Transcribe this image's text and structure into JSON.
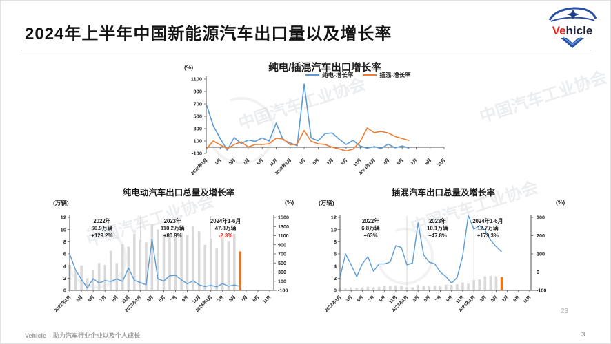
{
  "page": {
    "title": "2024年上半年中国新能源汽车出口量以及增长率",
    "footer_left": "Vehicle – 助力汽车行业企业以及个人成长",
    "page_number": "3",
    "inner_page_number": "23",
    "watermark": "中国汽车工业协会"
  },
  "logo": {
    "text_red": "Ve",
    "text_dark": "hicle"
  },
  "chart_data": [
    {
      "id": "growth",
      "type": "line",
      "title": "纯电/插混汽车出口增长率",
      "unit_left": "(%)",
      "ylim": [
        -100,
        1100
      ],
      "yticks": [
        1100,
        900,
        700,
        500,
        300,
        100,
        -100
      ],
      "x_tick_labels": [
        "2022年1月",
        "3月",
        "5月",
        "7月",
        "9月",
        "11月",
        "2023年1月",
        "3月",
        "5月",
        "7月",
        "9月",
        "11月",
        "2024年1月",
        "3月",
        "5月",
        "7月",
        "9月",
        "11月"
      ],
      "x_range_months": [
        "2022-01",
        "2024-11"
      ],
      "series": [
        {
          "name": "纯电-增长率",
          "color": "#5b9bd5",
          "values": [
            700,
            350,
            140,
            -45,
            155,
            60,
            115,
            95,
            150,
            100,
            390,
            120,
            70,
            25,
            1020,
            150,
            105,
            220,
            230,
            130,
            45,
            110,
            20,
            -15,
            10,
            -20,
            50,
            -10,
            20,
            -15
          ]
        },
        {
          "name": "插混-增长率",
          "color": "#ed7d31",
          "values": [
            -30,
            100,
            40,
            -25,
            45,
            85,
            5,
            45,
            45,
            55,
            145,
            135,
            40,
            50,
            270,
            95,
            55,
            45,
            0,
            -25,
            -60,
            -30,
            90,
            310,
            235,
            255,
            230,
            175,
            140,
            110
          ]
        }
      ]
    },
    {
      "id": "bev",
      "type": "bar+line",
      "title": "纯电动汽车出口总量及增长率",
      "unit_left": "(万辆)",
      "unit_right": "(%)",
      "ylim_left": [
        0,
        12
      ],
      "yticks_left": [
        12,
        10,
        8,
        6,
        4,
        2,
        0
      ],
      "ylim_right": [
        -100,
        1500
      ],
      "yticks_right": [
        1500,
        1300,
        1100,
        900,
        700,
        500,
        300,
        100,
        -100
      ],
      "x_tick_labels": [
        "2022年1月",
        "3月",
        "5月",
        "7月",
        "9月",
        "11月",
        "2023年1月",
        "3月",
        "5月",
        "7月",
        "9月",
        "11月",
        "2024年1月",
        "3月",
        "5月",
        "7月",
        "9月",
        "11月"
      ],
      "bars": {
        "name": "出口量(万辆)",
        "color": "#d9d9d9",
        "highlight_color": "#e8761c",
        "values": [
          4.2,
          3.2,
          4.1,
          2.0,
          3.4,
          4.5,
          4.2,
          6.5,
          4.5,
          7.6,
          7.2,
          9.3,
          8.3,
          7.9,
          10.9,
          10.0,
          9.2,
          8.7,
          8.8,
          9.5,
          9.1,
          10.6,
          9.7,
          7.5,
          8.5,
          7.0,
          8.6,
          8.0,
          9.3,
          6.4
        ]
      },
      "line": {
        "name": "增长率(%)",
        "color": "#5b9bd5",
        "values": [
          700,
          350,
          140,
          -45,
          155,
          60,
          115,
          95,
          150,
          100,
          390,
          120,
          70,
          25,
          1020,
          150,
          105,
          220,
          230,
          130,
          45,
          110,
          20,
          -15,
          10,
          -20,
          50,
          -10,
          20,
          -15
        ]
      },
      "dividers": [
        12,
        24
      ],
      "annotations": [
        {
          "year": "2022年",
          "volume": "60.9万辆",
          "growth": "+129.2%",
          "growth_color": "#222222",
          "month_center": 5.5
        },
        {
          "year": "2023年",
          "volume": "110.2万辆",
          "growth": "+80.9%",
          "growth_color": "#222222",
          "month_center": 17.5
        },
        {
          "year": "2024年1-6月",
          "volume": "47.8万辆",
          "growth": "-2.3%",
          "growth_color": "#e8261e",
          "month_center": 26.5
        }
      ]
    },
    {
      "id": "phev",
      "type": "bar+line",
      "title": "插混汽车出口总量及增长率",
      "unit_left": "(万辆)",
      "unit_right": "(%)",
      "ylim_left": [
        0,
        12
      ],
      "yticks_left": [
        12,
        10,
        8,
        6,
        4,
        2,
        0
      ],
      "ylim_right": [
        -100,
        300
      ],
      "yticks_right": [
        300,
        200,
        100,
        0,
        -100
      ],
      "x_tick_labels": [
        "2022年1月",
        "3月",
        "5月",
        "7月",
        "9月",
        "11月",
        "2023年1月",
        "3月",
        "5月",
        "7月",
        "9月",
        "11月",
        "2024年1月",
        "3月",
        "5月",
        "7月",
        "9月",
        "11月"
      ],
      "bars": {
        "name": "出口量(万辆)",
        "color": "#d9d9d9",
        "highlight_color": "#e8761c",
        "values": [
          0.4,
          0.3,
          0.5,
          0.4,
          0.5,
          0.6,
          0.5,
          0.6,
          0.7,
          0.7,
          0.8,
          0.8,
          0.5,
          0.5,
          0.9,
          0.7,
          0.7,
          0.8,
          0.8,
          0.9,
          0.9,
          1.0,
          1.3,
          1.1,
          1.7,
          1.8,
          2.3,
          2.4,
          2.3,
          2.2
        ]
      },
      "line": {
        "name": "增长率(%)",
        "color": "#5b9bd5",
        "values": [
          -30,
          100,
          40,
          -25,
          45,
          85,
          5,
          45,
          45,
          55,
          145,
          135,
          40,
          50,
          270,
          95,
          55,
          45,
          0,
          -25,
          -60,
          -30,
          90,
          310,
          235,
          255,
          230,
          175,
          140,
          110
        ]
      },
      "dividers": [
        12,
        24
      ],
      "annotations": [
        {
          "year": "2022年",
          "volume": "6.8万辆",
          "growth": "+63%",
          "growth_color": "#222222",
          "month_center": 5.5
        },
        {
          "year": "2023年",
          "volume": "10.1万辆",
          "growth": "+47.8%",
          "growth_color": "#222222",
          "month_center": 17.5
        },
        {
          "year": "2024年1-6月",
          "volume": "12.7万辆",
          "growth": "+179.3%",
          "growth_color": "#222222",
          "month_center": 26.5
        }
      ]
    }
  ]
}
